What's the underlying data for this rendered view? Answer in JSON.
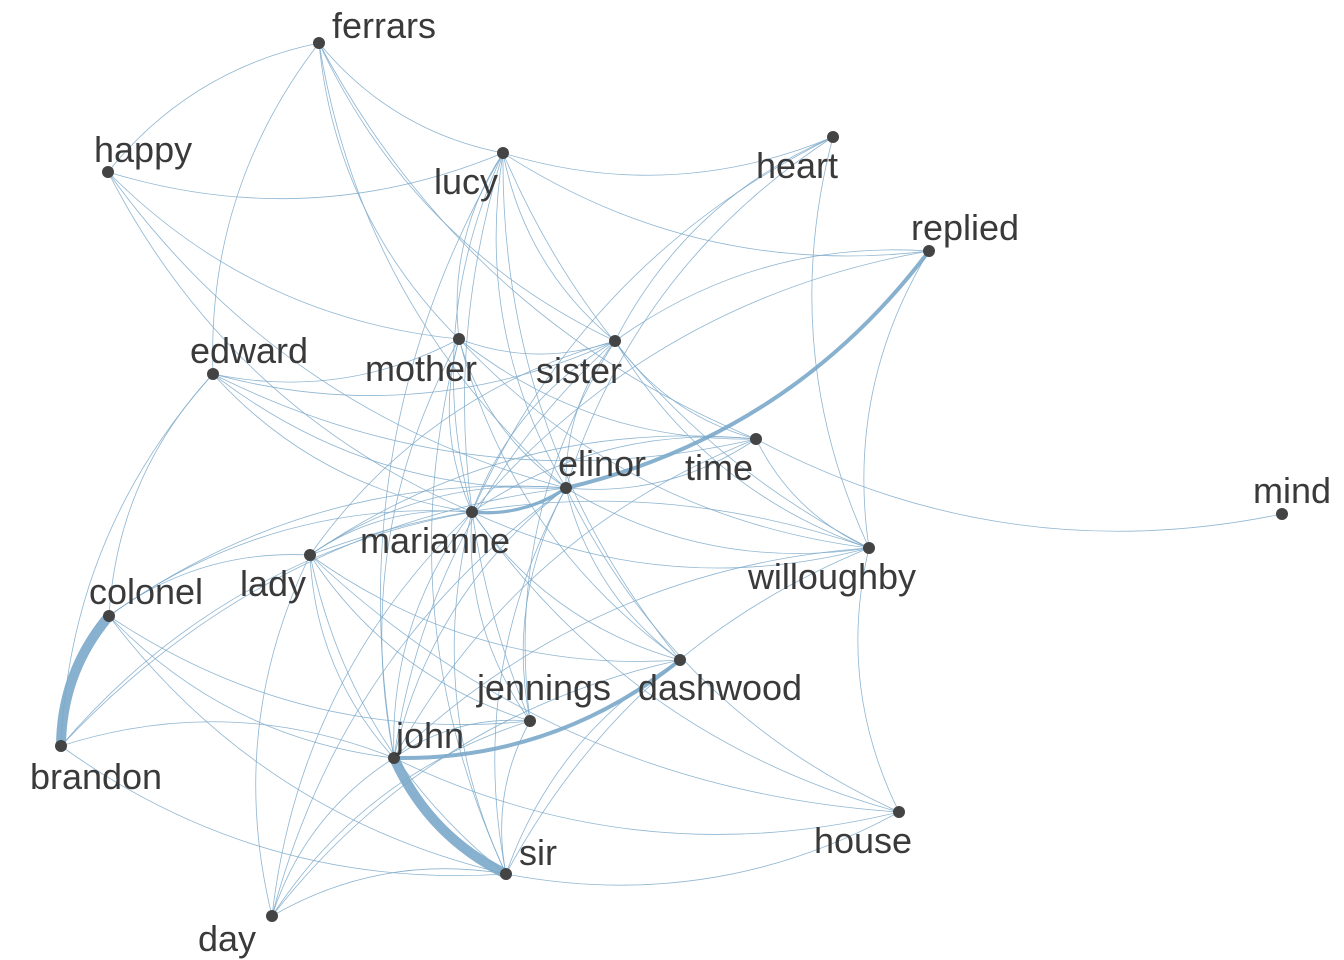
{
  "graph": {
    "edge_color": "#7aa8c9",
    "node_color": "#444444",
    "label_color": "#3a3a3a",
    "nodes": [
      {
        "id": "ferrars",
        "label": "ferrars"
      },
      {
        "id": "happy",
        "label": "happy"
      },
      {
        "id": "lucy",
        "label": "lucy"
      },
      {
        "id": "heart",
        "label": "heart"
      },
      {
        "id": "replied",
        "label": "replied"
      },
      {
        "id": "edward",
        "label": "edward"
      },
      {
        "id": "mother",
        "label": "mother"
      },
      {
        "id": "sister",
        "label": "sister"
      },
      {
        "id": "elinor",
        "label": "elinor"
      },
      {
        "id": "time",
        "label": "time"
      },
      {
        "id": "mind",
        "label": "mind"
      },
      {
        "id": "marianne",
        "label": "marianne"
      },
      {
        "id": "willoughby",
        "label": "willoughby"
      },
      {
        "id": "lady",
        "label": "lady"
      },
      {
        "id": "colonel",
        "label": "colonel"
      },
      {
        "id": "jennings",
        "label": "jennings"
      },
      {
        "id": "dashwood",
        "label": "dashwood"
      },
      {
        "id": "john",
        "label": "john"
      },
      {
        "id": "brandon",
        "label": "brandon"
      },
      {
        "id": "sir",
        "label": "sir"
      },
      {
        "id": "house",
        "label": "house"
      },
      {
        "id": "day",
        "label": "day"
      }
    ],
    "strong_edges": [
      {
        "source": "colonel",
        "target": "brandon",
        "weight": 5
      },
      {
        "source": "john",
        "target": "sir",
        "weight": 5
      },
      {
        "source": "elinor",
        "target": "replied",
        "weight": 2
      },
      {
        "source": "john",
        "target": "dashwood",
        "weight": 2
      },
      {
        "source": "marianne",
        "target": "elinor",
        "weight": 1.6
      }
    ],
    "edges": [
      [
        "ferrars",
        "happy"
      ],
      [
        "ferrars",
        "lucy"
      ],
      [
        "ferrars",
        "edward"
      ],
      [
        "ferrars",
        "mother"
      ],
      [
        "ferrars",
        "elinor"
      ],
      [
        "ferrars",
        "sister"
      ],
      [
        "ferrars",
        "time"
      ],
      [
        "happy",
        "lucy"
      ],
      [
        "happy",
        "mother"
      ],
      [
        "happy",
        "elinor"
      ],
      [
        "happy",
        "marianne"
      ],
      [
        "lucy",
        "heart"
      ],
      [
        "lucy",
        "replied"
      ],
      [
        "lucy",
        "mother"
      ],
      [
        "lucy",
        "sister"
      ],
      [
        "lucy",
        "elinor"
      ],
      [
        "lucy",
        "marianne"
      ],
      [
        "lucy",
        "jennings"
      ],
      [
        "lucy",
        "dashwood"
      ],
      [
        "lucy",
        "john"
      ],
      [
        "lucy",
        "willoughby"
      ],
      [
        "heart",
        "marianne"
      ],
      [
        "heart",
        "elinor"
      ],
      [
        "heart",
        "willoughby"
      ],
      [
        "heart",
        "sister"
      ],
      [
        "replied",
        "marianne"
      ],
      [
        "replied",
        "sister"
      ],
      [
        "replied",
        "willoughby"
      ],
      [
        "edward",
        "mother"
      ],
      [
        "edward",
        "elinor"
      ],
      [
        "edward",
        "marianne"
      ],
      [
        "edward",
        "sister"
      ],
      [
        "edward",
        "colonel"
      ],
      [
        "edward",
        "time"
      ],
      [
        "edward",
        "brandon"
      ],
      [
        "mother",
        "sister"
      ],
      [
        "mother",
        "elinor"
      ],
      [
        "mother",
        "marianne"
      ],
      [
        "mother",
        "john"
      ],
      [
        "mother",
        "dashwood"
      ],
      [
        "mother",
        "willoughby"
      ],
      [
        "mother",
        "time"
      ],
      [
        "mother",
        "sir"
      ],
      [
        "sister",
        "elinor"
      ],
      [
        "sister",
        "marianne"
      ],
      [
        "sister",
        "john"
      ],
      [
        "sister",
        "lady"
      ],
      [
        "sister",
        "willoughby"
      ],
      [
        "sister",
        "jennings"
      ],
      [
        "sister",
        "time"
      ],
      [
        "elinor",
        "time"
      ],
      [
        "elinor",
        "willoughby"
      ],
      [
        "elinor",
        "lady"
      ],
      [
        "elinor",
        "colonel"
      ],
      [
        "elinor",
        "jennings"
      ],
      [
        "elinor",
        "dashwood"
      ],
      [
        "elinor",
        "john"
      ],
      [
        "elinor",
        "sir"
      ],
      [
        "elinor",
        "house"
      ],
      [
        "elinor",
        "day"
      ],
      [
        "elinor",
        "brandon"
      ],
      [
        "time",
        "marianne"
      ],
      [
        "time",
        "willoughby"
      ],
      [
        "time",
        "mind"
      ],
      [
        "time",
        "lady"
      ],
      [
        "time",
        "john"
      ],
      [
        "marianne",
        "willoughby"
      ],
      [
        "marianne",
        "lady"
      ],
      [
        "marianne",
        "colonel"
      ],
      [
        "marianne",
        "jennings"
      ],
      [
        "marianne",
        "dashwood"
      ],
      [
        "marianne",
        "john"
      ],
      [
        "marianne",
        "sir"
      ],
      [
        "marianne",
        "house"
      ],
      [
        "marianne",
        "brandon"
      ],
      [
        "marianne",
        "day"
      ],
      [
        "willoughby",
        "lady"
      ],
      [
        "willoughby",
        "john"
      ],
      [
        "willoughby",
        "house"
      ],
      [
        "willoughby",
        "sir"
      ],
      [
        "lady",
        "jennings"
      ],
      [
        "lady",
        "john"
      ],
      [
        "lady",
        "sir"
      ],
      [
        "lady",
        "dashwood"
      ],
      [
        "lady",
        "day"
      ],
      [
        "lady",
        "house"
      ],
      [
        "lady",
        "colonel"
      ],
      [
        "colonel",
        "john"
      ],
      [
        "colonel",
        "sir"
      ],
      [
        "colonel",
        "jennings"
      ],
      [
        "jennings",
        "john"
      ],
      [
        "jennings",
        "sir"
      ],
      [
        "jennings",
        "day"
      ],
      [
        "dashwood",
        "sir"
      ],
      [
        "dashwood",
        "day"
      ],
      [
        "john",
        "brandon"
      ],
      [
        "john",
        "day"
      ],
      [
        "john",
        "house"
      ],
      [
        "brandon",
        "sir"
      ],
      [
        "sir",
        "day"
      ],
      [
        "sir",
        "house"
      ]
    ]
  }
}
